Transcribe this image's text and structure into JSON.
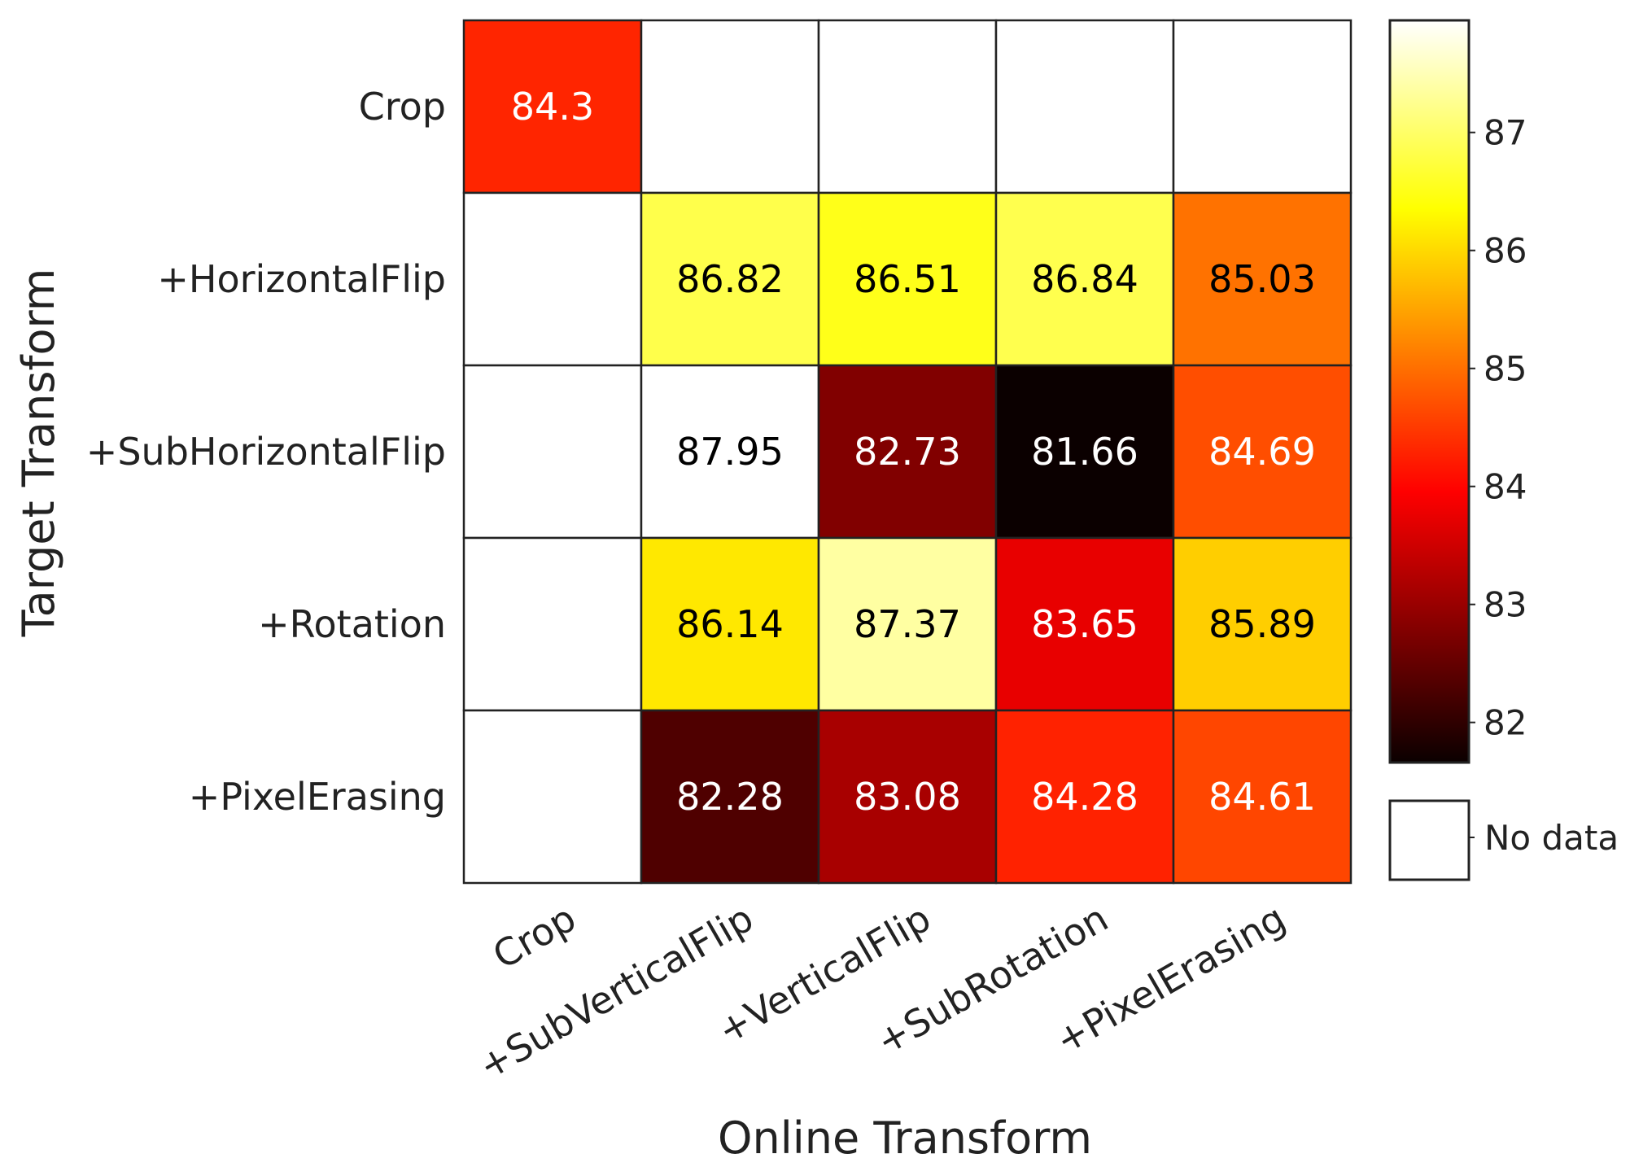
{
  "chart_data": {
    "type": "heatmap",
    "xlabel": "Online Transform",
    "ylabel": "Target Transform",
    "x_categories": [
      "Crop",
      "+SubVerticalFlip",
      "+VerticalFlip",
      "+SubRotation",
      "+PixelErasing"
    ],
    "y_categories": [
      "Crop",
      "+HorizontalFlip",
      "+SubHorizontalFlip",
      "+Rotation",
      "+PixelErasing"
    ],
    "values": [
      [
        84.3,
        null,
        null,
        null,
        null
      ],
      [
        null,
        86.82,
        86.51,
        86.84,
        85.03
      ],
      [
        null,
        87.95,
        82.73,
        81.66,
        84.69
      ],
      [
        null,
        86.14,
        87.37,
        83.65,
        85.89
      ],
      [
        null,
        82.28,
        83.08,
        84.28,
        84.61
      ]
    ],
    "value_labels": [
      [
        "84.3",
        "",
        "",
        "",
        ""
      ],
      [
        "",
        "86.82",
        "86.51",
        "86.84",
        "85.03"
      ],
      [
        "",
        "87.95",
        "82.73",
        "81.66",
        "84.69"
      ],
      [
        "",
        "86.14",
        "87.37",
        "83.65",
        "85.89"
      ],
      [
        "",
        "82.28",
        "83.08",
        "84.28",
        "84.61"
      ]
    ],
    "colormap": "hot",
    "colorbar": {
      "range": [
        81.66,
        87.95
      ],
      "ticks": [
        82,
        83,
        84,
        85,
        86,
        87
      ],
      "tick_labels": [
        "82",
        "83",
        "84",
        "85",
        "86",
        "87"
      ]
    },
    "missing_label": "No data",
    "missing_color": "#ffffff"
  }
}
